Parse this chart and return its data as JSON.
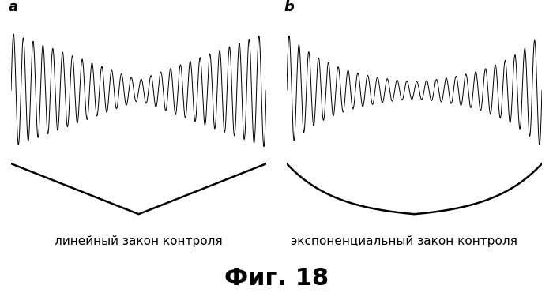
{
  "title": "Фиг. 18",
  "label_a": "a",
  "label_b": "b",
  "text_a": "линейный закон контроля",
  "text_b": "экспоненциальный закон контроля",
  "title_fontsize": 22,
  "label_fontsize": 13,
  "caption_fontsize": 11,
  "bg_color": "#ffffff",
  "line_color": "#000000",
  "carrier_freq": 26,
  "env_min_a": 0.18,
  "env_min_b": 0.15
}
